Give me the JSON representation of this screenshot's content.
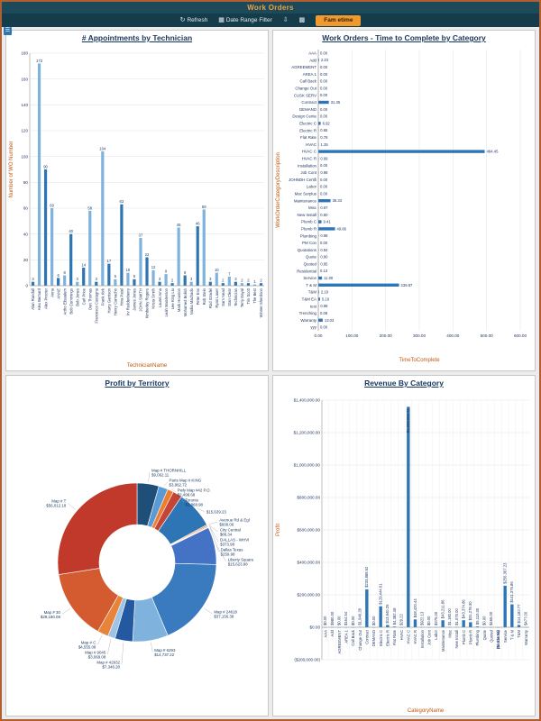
{
  "header": {
    "title": "Work Orders"
  },
  "toolbar": {
    "refresh_label": "Refresh",
    "date_filter_label": "Date Range Filter",
    "famtime_label": "Fam etime"
  },
  "chart_data": [
    {
      "type": "bar",
      "title": "# Appointments by Technician",
      "xlabel": "TechnicianName",
      "ylabel": "Number of WO Number",
      "ylim": [
        0,
        180
      ],
      "grid": true,
      "categories": [
        "Alan Randall",
        "Alex Bernard",
        "Alex Procter",
        "Anna",
        "ANNE",
        "Artho Elisualem",
        "Bob Cummings",
        "Bob Jones",
        "Carl Price",
        "Dan Thomas",
        "Francesco Castagna",
        "Frank Kirk",
        "Harry Garrison",
        "Henry Camacho",
        "Hina Patel",
        "Irv Roddenberry",
        "James Jones",
        "JOHN SMITH",
        "Kimberley Rogers",
        "Krista Smith",
        "Laurel Ama",
        "Leah Manderson",
        "Lee King Liu",
        "Mark Houston",
        "Mohamed Bolish",
        "Nadia Machado",
        "Peter Ens",
        "Rob Stein",
        "Rod Stradel",
        "Ryan Lauer",
        "Sam Nead",
        "Stan Clear",
        "Technician",
        "Terry Dayal",
        "Tim Scott",
        "The Best",
        "Winner Sherdson"
      ],
      "values": [
        3,
        172,
        90,
        60,
        6,
        8,
        40,
        3,
        14,
        58,
        3,
        104,
        17,
        5,
        63,
        10,
        5,
        37,
        22,
        12,
        3,
        9,
        2,
        45,
        8,
        3,
        46,
        59,
        3,
        10,
        2,
        7,
        3,
        2,
        2,
        1,
        2
      ]
    },
    {
      "type": "bar_horizontal",
      "title": "Work Orders - Time to Complete by Category",
      "xlabel": "TimeToComplete",
      "ylabel": "WorkOrderCategoryDescription",
      "xlim": [
        0,
        600
      ],
      "xticks": [
        0,
        100,
        200,
        300,
        400,
        500,
        600
      ],
      "categories": [
        "AAA",
        "Add",
        "AGREEMENT",
        "AREA 1",
        "Call Back",
        "Change Out",
        "CUSK SERV",
        "Contract",
        "DEMAND",
        "Design Cente",
        "Electric C",
        "Electric R",
        "Flat Rate",
        "HVAC",
        "HVAC C",
        "HVAC R",
        "Installation",
        "Job Cont",
        "JOHNDH Certifi",
        "Labor",
        "Mac Surplus",
        "Maintenance",
        "Misc",
        "New Install",
        "Plumb C",
        "Plumb R",
        "Plumbing",
        "PM Con",
        "Quotations",
        "Quote",
        "Quoted",
        "Residential",
        "Service",
        "T & M",
        "T&M",
        "T&M EA",
        "test",
        "Trenching",
        "Warranty",
        "yyy"
      ],
      "values": [
        0.0,
        2.23,
        0.0,
        0.0,
        0.0,
        0.0,
        0.0,
        31.35,
        0.0,
        0.0,
        6.92,
        0.65,
        0.78,
        1.35,
        494.45,
        0.99,
        0.0,
        0.98,
        0.0,
        0.0,
        0.0,
        36.33,
        0.97,
        0.8,
        9.41,
        49.66,
        0.98,
        0.0,
        0.94,
        0.9,
        0.95,
        0.13,
        11.0,
        239.87,
        2.19,
        5.19,
        0.98,
        0.08,
        13.03,
        0.0
      ]
    },
    {
      "type": "pie",
      "title": "Profit by Territory",
      "slices": [
        {
          "name": "Map # THORNHILL",
          "amount": "$9,062.11",
          "value": 9062.11,
          "color": "#1f4e79"
        },
        {
          "name": "Parts Map # KING",
          "amount": "$3,862.72",
          "value": 3862.72,
          "color": "#5b9bd5"
        },
        {
          "name": "Pwly Map #42 P.O.",
          "amount": "$2,498.68",
          "value": 2498.68,
          "color": "#ed7d31"
        },
        {
          "name": "Toronto",
          "amount": "$3,868.98",
          "value": 3868.98,
          "color": "#c44536"
        },
        {
          "name": "",
          "amount": "$15,639.23",
          "value": 15639.23,
          "color": "#2e75b6"
        },
        {
          "name": "Avenue Rd & Egl",
          "amount": "$608.06",
          "value": 608.06,
          "color": "#e8913a"
        },
        {
          "name": "City Central",
          "amount": "$86.34",
          "value": 86.34,
          "color": "#9dc3e6"
        },
        {
          "name": "DALLAS - WHVI",
          "amount": "$373.98",
          "value": 373.98,
          "color": "#c0392b"
        },
        {
          "name": "Dallas Texas",
          "amount": "$259.98",
          "value": 259.98,
          "color": "#6fb3e0"
        },
        {
          "name": "Liberty Square",
          "amount": "$15,623.98",
          "value": 15623.98,
          "color": "#4472c4"
        },
        {
          "name": "Map # 24618",
          "amount": "$37,156.38",
          "value": 37156.38,
          "color": "#3a7bbf"
        },
        {
          "name": "Map # 6293",
          "amount": "$14,737.22",
          "value": 14737.22,
          "color": "#7fb2dc"
        },
        {
          "name": "Map # 42932",
          "amount": "$7,346.28",
          "value": 7346.28,
          "color": "#2458a0"
        },
        {
          "name": "Map # 9045",
          "amount": "$3,069.08",
          "value": 3069.08,
          "color": "#9dc3e6"
        },
        {
          "name": "Map # C",
          "amount": "$4,555.08",
          "value": 4555.08,
          "color": "#e8833a"
        },
        {
          "name": "Map # 30",
          "amount": "$29,180.08",
          "value": 29180.08,
          "color": "#d35b2f"
        },
        {
          "name": "Map # T",
          "amount": "$56,012.18",
          "value": 56012.18,
          "color": "#c0392b"
        }
      ]
    },
    {
      "type": "bar",
      "title": "Revenue By Category",
      "xlabel": "CategoryName",
      "ylabel": "Profit",
      "ylim": [
        -200000,
        1400000
      ],
      "grid": true,
      "categories": [
        "AAA",
        "Add",
        "AGREEMENT",
        "AREA 1",
        "Call Back",
        "Change Out",
        "Contract",
        "DEMAND",
        "Electric C",
        "Electric R",
        "Flat Rate",
        "HVAC",
        "HVAC C",
        "HVAC R",
        "Installation",
        "Job Cont",
        "Labor",
        "Maintenance",
        "Misc",
        "New Install",
        "Plumb C",
        "Plumb R",
        "Plumbing",
        "Quote",
        "Quoted",
        "Residential",
        "Service",
        "T & M",
        "T&M",
        "Warranty"
      ],
      "values": [
        0,
        980.0,
        0,
        164.54,
        0,
        1946.28,
        233888.62,
        0,
        129444.61,
        13940.25,
        4382.48,
        29.22,
        1359059.74,
        48420.44,
        922.13,
        0,
        375.0,
        43211.86,
        1180.0,
        1075.0,
        43374.86,
        31278.3,
        5110.0,
        0,
        465.0,
        -1011.94,
        256367.23,
        141376.86,
        14182.77,
        477.0
      ]
    }
  ],
  "colors": {
    "bar_primary": "#2e75b6",
    "bar_secondary": "#7fb2dc",
    "axis_label": "#c05a11",
    "tick_label": "#1f3864",
    "title": "#17365d",
    "header_bg": "#1c4a5a",
    "toolbar_bg": "#143c4a",
    "accent": "#f09a2e"
  }
}
